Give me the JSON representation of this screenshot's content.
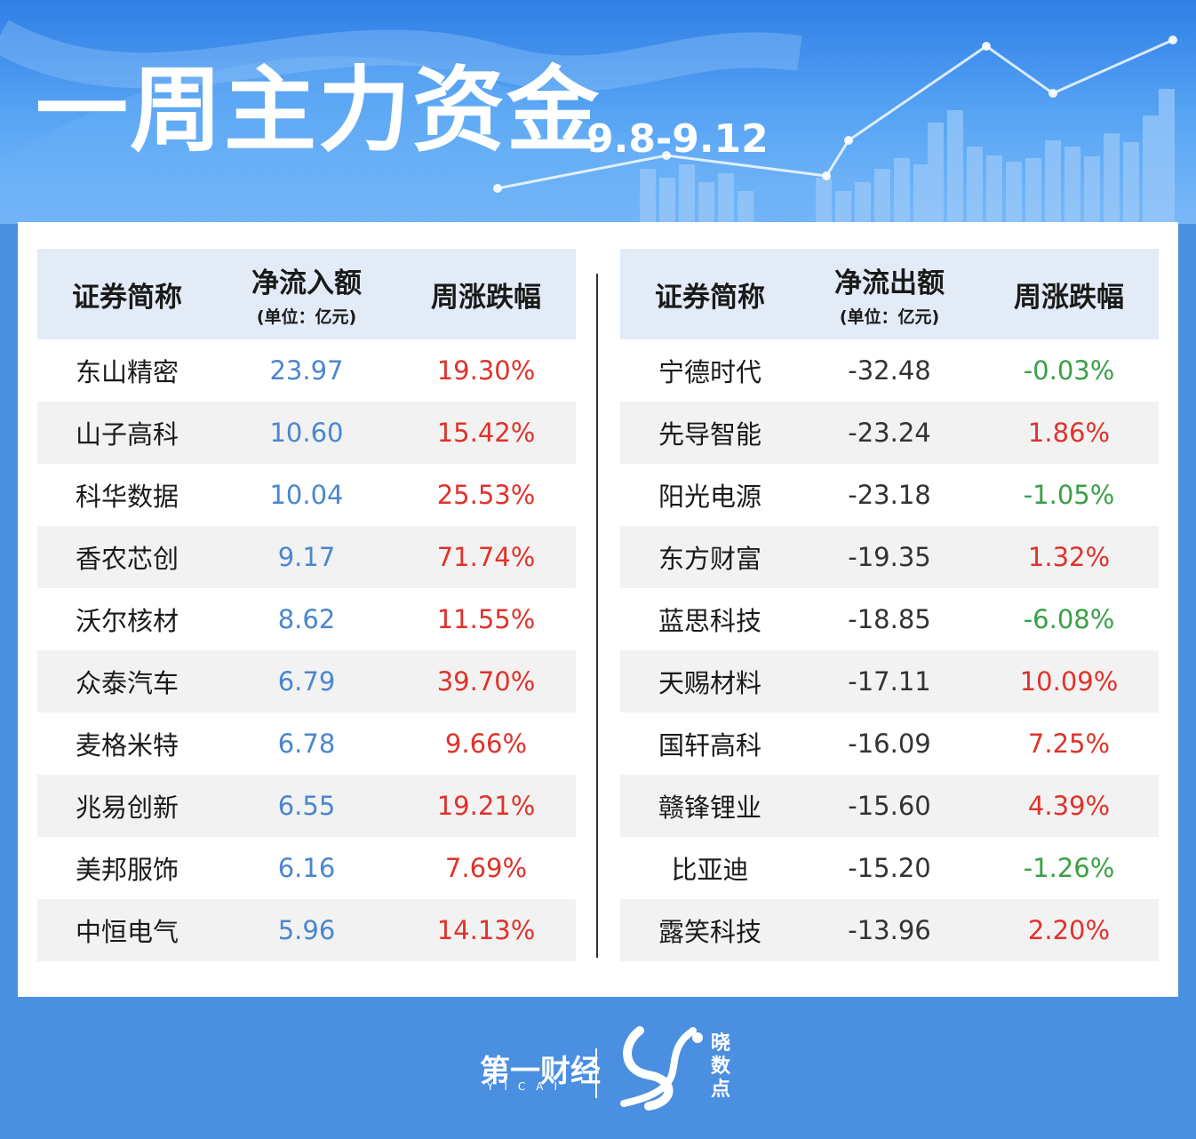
{
  "header": {
    "title": "一周主力资金",
    "date_range": "9.8-9.12"
  },
  "inflow": {
    "columns": {
      "name": "证券简称",
      "amount": "净流入额",
      "unit": "(单位：亿元)",
      "change": "周涨跌幅"
    },
    "rows": [
      {
        "name": "东山精密",
        "amount": "23.97",
        "change": "19.30%",
        "color": "red"
      },
      {
        "name": "山子高科",
        "amount": "10.60",
        "change": "15.42%",
        "color": "red"
      },
      {
        "name": "科华数据",
        "amount": "10.04",
        "change": "25.53%",
        "color": "red"
      },
      {
        "name": "香农芯创",
        "amount": "9.17",
        "change": "71.74%",
        "color": "red"
      },
      {
        "name": "沃尔核材",
        "amount": "8.62",
        "change": "11.55%",
        "color": "red"
      },
      {
        "name": "众泰汽车",
        "amount": "6.79",
        "change": "39.70%",
        "color": "red"
      },
      {
        "name": "麦格米特",
        "amount": "6.78",
        "change": "9.66%",
        "color": "red"
      },
      {
        "name": "兆易创新",
        "amount": "6.55",
        "change": "19.21%",
        "color": "red"
      },
      {
        "name": "美邦服饰",
        "amount": "6.16",
        "change": "7.69%",
        "color": "red"
      },
      {
        "name": "中恒电气",
        "amount": "5.96",
        "change": "14.13%",
        "color": "red"
      }
    ]
  },
  "outflow": {
    "columns": {
      "name": "证券简称",
      "amount": "净流出额",
      "unit": "(单位：亿元)",
      "change": "周涨跌幅"
    },
    "rows": [
      {
        "name": "宁德时代",
        "amount": "-32.48",
        "change": "-0.03%",
        "color": "green"
      },
      {
        "name": "先导智能",
        "amount": "-23.24",
        "change": "1.86%",
        "color": "red"
      },
      {
        "name": "阳光电源",
        "amount": "-23.18",
        "change": "-1.05%",
        "color": "green"
      },
      {
        "name": "东方财富",
        "amount": "-19.35",
        "change": "1.32%",
        "color": "red"
      },
      {
        "name": "蓝思科技",
        "amount": "-18.85",
        "change": "-6.08%",
        "color": "green"
      },
      {
        "name": "天赐材料",
        "amount": "-17.11",
        "change": "10.09%",
        "color": "red"
      },
      {
        "name": "国轩高科",
        "amount": "-16.09",
        "change": "7.25%",
        "color": "red"
      },
      {
        "name": "赣锋锂业",
        "amount": "-15.60",
        "change": "4.39%",
        "color": "red"
      },
      {
        "name": "比亚迪",
        "amount": "-15.20",
        "change": "-1.26%",
        "color": "green"
      },
      {
        "name": "露笑科技",
        "amount": "-13.96",
        "change": "2.20%",
        "color": "red"
      }
    ]
  },
  "footer": {
    "brand_primary": "第一财经",
    "brand_primary_sub": "YICAI",
    "brand_secondary": "晓数点"
  },
  "colors": {
    "up": "#e0322a",
    "down": "#3aa046",
    "inflow_value": "#4a86cf",
    "header_bg": "#e3ebf6"
  }
}
